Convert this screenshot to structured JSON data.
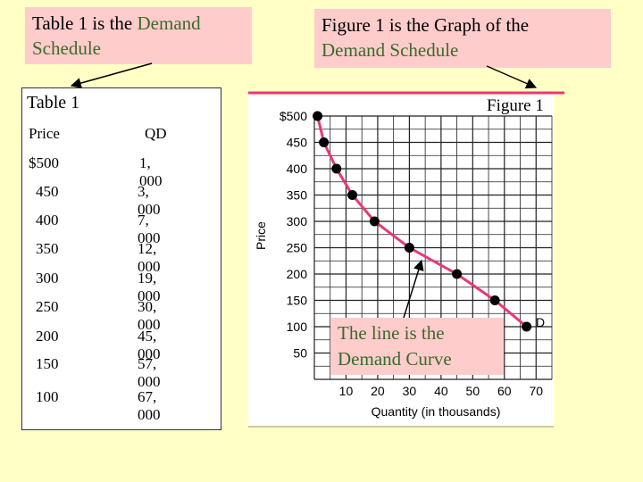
{
  "callouts": {
    "table_line1": "Table 1 is the ",
    "table_line1_green": "Demand",
    "table_line2_green": "Schedule",
    "figure_line1": "Figure 1 is the Graph of the",
    "figure_line2_green": "Demand Schedule",
    "curve_line1": "The line is the",
    "curve_line2": "Demand Curve"
  },
  "table": {
    "title": "Table 1",
    "header_price": "Price",
    "header_qd": "QD",
    "rows": [
      {
        "price": "$500",
        "qd": "1, 000"
      },
      {
        "price": "450",
        "qd": "3, 000"
      },
      {
        "price": "400",
        "qd": "7, 000"
      },
      {
        "price": "350",
        "qd": "12, 000"
      },
      {
        "price": "300",
        "qd": "19, 000"
      },
      {
        "price": "250",
        "qd": "30, 000"
      },
      {
        "price": "200",
        "qd": "45, 000"
      },
      {
        "price": "150",
        "qd": "57, 000"
      },
      {
        "price": "100",
        "qd": "67, 000"
      }
    ]
  },
  "figure_label": "Figure 1",
  "colors": {
    "background": "#ffffc6",
    "callout": "#ffcccc",
    "accent_green": "#3a6b2a",
    "curve": "#e8387a",
    "grid": "#222222"
  },
  "chart_data": {
    "type": "line",
    "xlabel": "Quantity (in thousands)",
    "ylabel": "Price",
    "curve_label": "D",
    "xlim": [
      0,
      75
    ],
    "ylim": [
      0,
      500
    ],
    "x_ticks": [
      10,
      20,
      30,
      40,
      50,
      60,
      70
    ],
    "y_tick_labels": [
      "$500",
      "450",
      "400",
      "350",
      "300",
      "250",
      "200",
      "150",
      "100",
      "50"
    ],
    "y_tick_values": [
      500,
      450,
      400,
      350,
      300,
      250,
      200,
      150,
      100,
      50
    ],
    "grid": true,
    "series": [
      {
        "x": [
          1,
          3,
          7,
          12,
          19,
          30,
          45,
          57,
          67
        ],
        "y": [
          500,
          450,
          400,
          350,
          300,
          250,
          200,
          150,
          100
        ]
      }
    ]
  }
}
